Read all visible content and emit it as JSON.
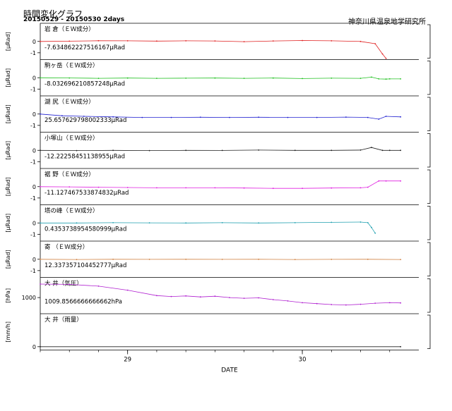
{
  "header": {
    "title": "時間変化グラフ",
    "range": "20150529 - 20150530 2days",
    "org": "神奈川県温泉地学研究所"
  },
  "chart_data": {
    "type": "line",
    "xlabel": "DATE",
    "x_ticks": [
      "29",
      "30"
    ],
    "colors": {
      "red": "#e02020",
      "green": "#20c020",
      "blue": "#2020d0",
      "black": "#202020",
      "magenta": "#e020e0",
      "cyan": "#20a0b0",
      "orange": "#d08040",
      "purple": "#b020d0"
    },
    "panels": [
      {
        "key": "p1",
        "label": "岩 倉（ＥＷ成分）",
        "value": "-7.634862227516167μRad",
        "ylabel": "[μRad]",
        "ticks": [
          "0",
          "-1"
        ],
        "ylim": [
          -1.6,
          1.6
        ],
        "color": "red",
        "x": [
          0,
          4,
          8,
          12,
          16,
          20,
          24,
          28,
          32,
          36,
          40,
          44,
          46,
          47,
          47.5
        ],
        "y": [
          0,
          0.02,
          0.06,
          0.05,
          0.03,
          0.05,
          0.04,
          -0.02,
          0.04,
          0.08,
          0.05,
          0.0,
          -0.2,
          -1.1,
          -1.5
        ]
      },
      {
        "key": "p2",
        "label": "駒ヶ岳（ＥＷ成分）",
        "value": "-8.032696210857248μRad",
        "ylabel": "[μRad]",
        "ticks": [
          "0",
          "-1"
        ],
        "ylim": [
          -1.6,
          1.6
        ],
        "color": "green",
        "x": [
          0,
          4,
          8,
          12,
          16,
          20,
          24,
          28,
          32,
          36,
          40,
          44,
          45.5,
          46.5,
          47.5,
          48,
          49.5
        ],
        "y": [
          0,
          -0.02,
          -0.05,
          -0.03,
          -0.05,
          -0.04,
          -0.03,
          -0.05,
          -0.03,
          -0.07,
          -0.04,
          -0.05,
          0.05,
          -0.1,
          -0.12,
          -0.1,
          -0.1
        ]
      },
      {
        "key": "p3",
        "label": "湖 尻（ＥＷ成分）",
        "value": "25.657629798002333μRad",
        "ylabel": "[μRad]",
        "ticks": [
          "0",
          "-1"
        ],
        "ylim": [
          -1.6,
          1.6
        ],
        "color": "blue",
        "x": [
          0,
          3,
          6,
          10,
          14,
          18,
          22,
          26,
          30,
          34,
          38,
          42,
          45,
          46.5,
          47.5,
          49.5
        ],
        "y": [
          0,
          -0.15,
          -0.2,
          -0.25,
          -0.3,
          -0.3,
          -0.28,
          -0.3,
          -0.28,
          -0.3,
          -0.3,
          -0.27,
          -0.3,
          -0.45,
          -0.2,
          -0.25
        ]
      },
      {
        "key": "p4",
        "label": "小塚山（ＥＷ成分）",
        "value": "-12.22258451138955μRad",
        "ylabel": "[μRad]",
        "ticks": [
          "0",
          "-1"
        ],
        "ylim": [
          -1.6,
          1.6
        ],
        "color": "black",
        "x": [
          0,
          5,
          10,
          15,
          20,
          25,
          30,
          35,
          40,
          44,
          45.5,
          47,
          48,
          49.5
        ],
        "y": [
          0,
          -0.02,
          0,
          -0.02,
          0,
          -0.01,
          0.02,
          0,
          0,
          0.02,
          0.25,
          0.0,
          0.0,
          0.0
        ]
      },
      {
        "key": "p5",
        "label": "裾 野（ＥＷ成分）",
        "value": "-11.127467533874832μRad",
        "ylabel": "[μRad]",
        "ticks": [
          "0",
          "-1"
        ],
        "ylim": [
          -1.6,
          1.6
        ],
        "color": "magenta",
        "x": [
          0,
          4,
          8,
          12,
          16,
          20,
          24,
          28,
          32,
          36,
          40,
          44,
          45,
          46.5,
          47.5,
          49.5
        ],
        "y": [
          0,
          -0.02,
          -0.05,
          -0.08,
          -0.1,
          -0.1,
          -0.1,
          -0.12,
          -0.15,
          -0.15,
          -0.12,
          -0.1,
          -0.05,
          0.5,
          0.5,
          0.5
        ]
      },
      {
        "key": "p6",
        "label": "塔の峰（ＥＷ成分）",
        "value": "0.4353738954580999μRad",
        "ylabel": "[μRad]",
        "ticks": [
          "0",
          "-1"
        ],
        "ylim": [
          -1.6,
          1.6
        ],
        "color": "cyan",
        "x": [
          0,
          5,
          10,
          15,
          20,
          25,
          30,
          35,
          40,
          44,
          45,
          45.5,
          46
        ],
        "y": [
          0,
          0.0,
          0.02,
          0.01,
          0.0,
          0.02,
          0.0,
          0.02,
          0.05,
          0.08,
          0.02,
          -0.4,
          -0.9
        ]
      },
      {
        "key": "p7",
        "label": "寄 （ＥＷ成分）",
        "value": "12.337357104452777μRad",
        "ylabel": "[μRad]",
        "ticks": [
          "0",
          "-1"
        ],
        "ylim": [
          -1.6,
          1.6
        ],
        "color": "orange",
        "x": [
          0,
          5,
          10,
          15,
          20,
          25,
          30,
          35,
          40,
          45,
          49.5
        ],
        "y": [
          0,
          -0.02,
          0,
          -0.01,
          0,
          -0.01,
          0,
          -0.02,
          -0.01,
          0,
          -0.02
        ]
      },
      {
        "key": "p8",
        "label": "大 井（気圧）",
        "value": "1009.8566666666662hPa",
        "ylabel": "[hPa]",
        "ticks": [
          "1000"
        ],
        "ylim": [
          988,
          1015
        ],
        "color": "purple",
        "tick_values": [
          1000
        ],
        "x": [
          0,
          4,
          8,
          12,
          16,
          18,
          20,
          22,
          24,
          26,
          28,
          30,
          32,
          34,
          36,
          38,
          40,
          42,
          44,
          46,
          48,
          49.5
        ],
        "y": [
          1010,
          1009.8,
          1008.5,
          1005.5,
          1001.5,
          1000.8,
          1001.2,
          1000.5,
          1001,
          1000,
          999.5,
          999.8,
          998.5,
          997.5,
          996.2,
          995.5,
          994.8,
          994.5,
          995,
          995.8,
          996.2,
          996
        ]
      },
      {
        "key": "p9",
        "label": "大 井（雨量）",
        "value": "",
        "ylabel": "[mm/h]",
        "ticks": [
          "0"
        ],
        "ylim": [
          -0.1,
          1
        ],
        "color": "black",
        "tick_values": [
          0
        ],
        "x": [
          0,
          49.5
        ],
        "y": [
          0,
          0
        ]
      }
    ]
  }
}
